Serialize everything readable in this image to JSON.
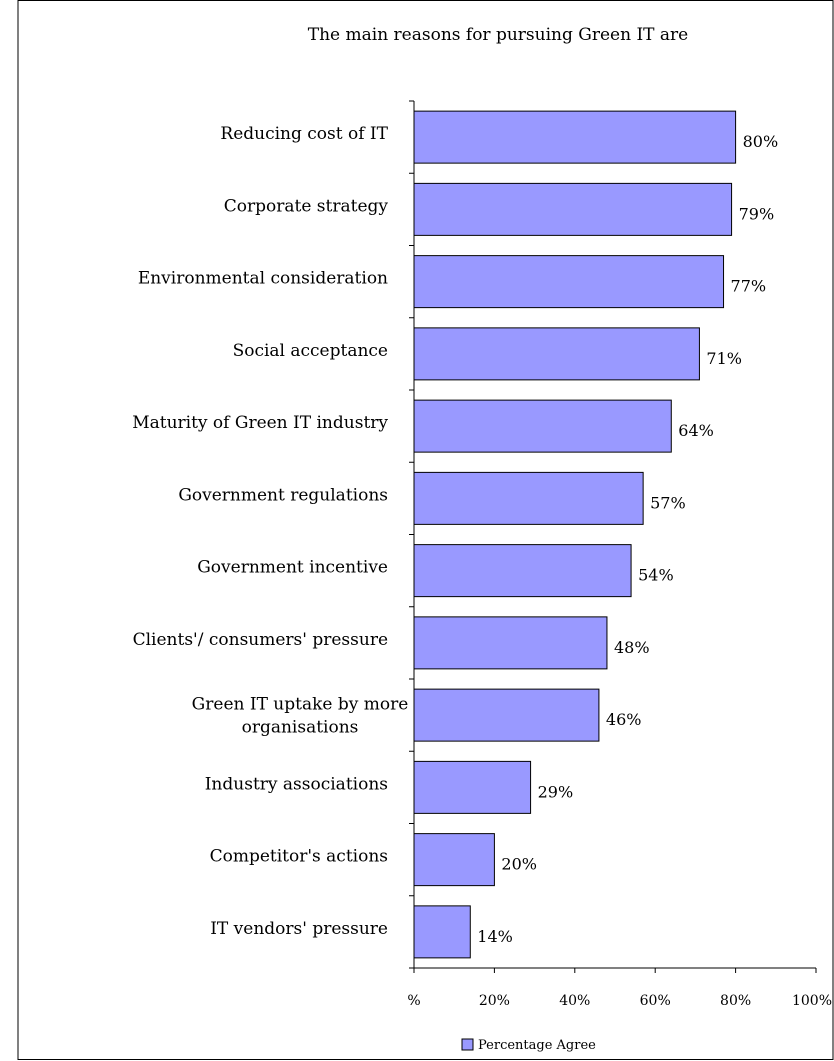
{
  "chart_data": {
    "type": "bar",
    "orientation": "horizontal",
    "title": "The main reasons for pursuing Green IT are",
    "categories": [
      [
        "Reducing  cost of IT"
      ],
      [
        "Corporate strategy"
      ],
      [
        "Environmental consideration"
      ],
      [
        "Social acceptance"
      ],
      [
        "Maturity of  Green IT industry"
      ],
      [
        "Government regulations"
      ],
      [
        "Government incentive"
      ],
      [
        "Clients'/ consumers' pressure"
      ],
      [
        "Green IT uptake by more",
        "organisations"
      ],
      [
        "Industry associations"
      ],
      [
        "Competitor's actions"
      ],
      [
        "IT vendors' pressure"
      ]
    ],
    "series": [
      {
        "name": "Percentage Agree",
        "values": [
          80,
          79,
          77,
          71,
          64,
          57,
          54,
          48,
          46,
          29,
          20,
          14
        ],
        "labels": [
          "80%",
          "79%",
          "77%",
          "71%",
          "64%",
          "57%",
          "54%",
          "48%",
          "46%",
          "29%",
          "20%",
          "14%"
        ]
      }
    ],
    "xlim": [
      0,
      100
    ],
    "xticks": [
      0,
      20,
      40,
      60,
      80,
      100
    ],
    "xtick_labels": [
      "%",
      "20%",
      "40%",
      "60%",
      "80%",
      "100%"
    ],
    "grid": false,
    "legend": "bottom",
    "colors": {
      "bar_fill": "#9999ff",
      "bar_stroke": "#000000",
      "frame": "#000000"
    }
  }
}
